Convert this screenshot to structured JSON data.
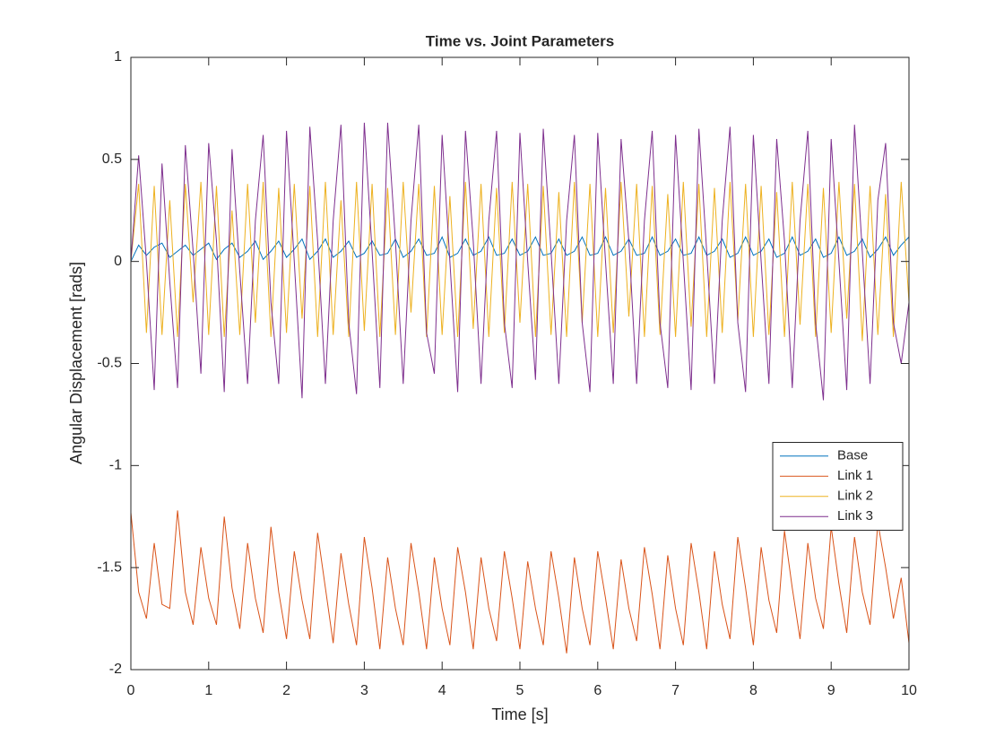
{
  "chart_data": {
    "type": "line",
    "title": "Time vs. Joint Parameters",
    "xlabel": "Time [s]",
    "ylabel": "Angular Displacement [rads]",
    "x": [
      0,
      0.1,
      0.2,
      0.3,
      0.4,
      0.5,
      0.6,
      0.7,
      0.8,
      0.9,
      1,
      1.1,
      1.2,
      1.3,
      1.4,
      1.5,
      1.6,
      1.7,
      1.8,
      1.9,
      2,
      2.1,
      2.2,
      2.3,
      2.4,
      2.5,
      2.6,
      2.7,
      2.8,
      2.9,
      3,
      3.1,
      3.2,
      3.3,
      3.4,
      3.5,
      3.6,
      3.7,
      3.8,
      3.9,
      4,
      4.1,
      4.2,
      4.3,
      4.4,
      4.5,
      4.6,
      4.7,
      4.8,
      4.9,
      5,
      5.1,
      5.2,
      5.3,
      5.4,
      5.5,
      5.6,
      5.7,
      5.8,
      5.9,
      6,
      6.1,
      6.2,
      6.3,
      6.4,
      6.5,
      6.6,
      6.7,
      6.8,
      6.9,
      7,
      7.1,
      7.2,
      7.3,
      7.4,
      7.5,
      7.6,
      7.7,
      7.8,
      7.9,
      8,
      8.1,
      8.2,
      8.3,
      8.4,
      8.5,
      8.6,
      8.7,
      8.8,
      8.9,
      9,
      9.1,
      9.2,
      9.3,
      9.4,
      9.5,
      9.6,
      9.7,
      9.8,
      9.9,
      10
    ],
    "series": [
      {
        "name": "Base",
        "color": "#0072BD",
        "values": [
          0,
          0.08,
          0.03,
          0.07,
          0.09,
          0.02,
          0.05,
          0.08,
          0.03,
          0.06,
          0.09,
          0.01,
          0.06,
          0.09,
          0.02,
          0.05,
          0.1,
          0.01,
          0.05,
          0.1,
          0.02,
          0.06,
          0.11,
          0.01,
          0.05,
          0.11,
          0.02,
          0.05,
          0.1,
          0.02,
          0.04,
          0.1,
          0.03,
          0.04,
          0.11,
          0.02,
          0.05,
          0.11,
          0.03,
          0.04,
          0.12,
          0.02,
          0.04,
          0.11,
          0.03,
          0.05,
          0.12,
          0.03,
          0.04,
          0.11,
          0.03,
          0.05,
          0.12,
          0.03,
          0.04,
          0.11,
          0.03,
          0.05,
          0.12,
          0.03,
          0.04,
          0.12,
          0.03,
          0.05,
          0.11,
          0.03,
          0.04,
          0.12,
          0.03,
          0.05,
          0.11,
          0.03,
          0.04,
          0.12,
          0.03,
          0.05,
          0.11,
          0.02,
          0.04,
          0.12,
          0.03,
          0.05,
          0.11,
          0.02,
          0.04,
          0.12,
          0.03,
          0.05,
          0.11,
          0.02,
          0.04,
          0.12,
          0.03,
          0.05,
          0.11,
          0.02,
          0.06,
          0.12,
          0.03,
          0.08,
          0.12
        ]
      },
      {
        "name": "Link 1",
        "color": "#D95319",
        "values": [
          -1.23,
          -1.62,
          -1.75,
          -1.38,
          -1.68,
          -1.7,
          -1.22,
          -1.62,
          -1.78,
          -1.4,
          -1.65,
          -1.78,
          -1.25,
          -1.6,
          -1.8,
          -1.38,
          -1.65,
          -1.82,
          -1.3,
          -1.62,
          -1.85,
          -1.42,
          -1.66,
          -1.85,
          -1.33,
          -1.6,
          -1.87,
          -1.43,
          -1.68,
          -1.88,
          -1.35,
          -1.6,
          -1.9,
          -1.45,
          -1.7,
          -1.88,
          -1.38,
          -1.62,
          -1.9,
          -1.45,
          -1.7,
          -1.88,
          -1.4,
          -1.62,
          -1.9,
          -1.45,
          -1.7,
          -1.86,
          -1.42,
          -1.65,
          -1.9,
          -1.47,
          -1.7,
          -1.88,
          -1.42,
          -1.65,
          -1.92,
          -1.45,
          -1.7,
          -1.88,
          -1.42,
          -1.65,
          -1.9,
          -1.46,
          -1.7,
          -1.86,
          -1.4,
          -1.63,
          -1.9,
          -1.44,
          -1.7,
          -1.88,
          -1.38,
          -1.62,
          -1.9,
          -1.42,
          -1.68,
          -1.85,
          -1.35,
          -1.6,
          -1.88,
          -1.4,
          -1.66,
          -1.82,
          -1.32,
          -1.6,
          -1.85,
          -1.38,
          -1.65,
          -1.8,
          -1.3,
          -1.58,
          -1.82,
          -1.35,
          -1.62,
          -1.78,
          -1.28,
          -1.5,
          -1.75,
          -1.55,
          -1.87
        ]
      },
      {
        "name": "Link 2",
        "color": "#EDB120",
        "values": [
          0,
          0.38,
          -0.35,
          0.37,
          -0.36,
          0.3,
          -0.37,
          0.38,
          -0.2,
          0.39,
          -0.36,
          0.37,
          -0.37,
          0.25,
          -0.36,
          0.38,
          -0.3,
          0.39,
          -0.37,
          0.36,
          -0.35,
          0.38,
          -0.28,
          0.37,
          -0.37,
          0.39,
          -0.36,
          0.3,
          -0.37,
          0.39,
          -0.34,
          0.38,
          -0.37,
          0.36,
          -0.36,
          0.39,
          -0.25,
          0.38,
          -0.37,
          0.37,
          -0.36,
          0.32,
          -0.37,
          0.39,
          -0.33,
          0.38,
          -0.37,
          0.36,
          -0.35,
          0.39,
          -0.3,
          0.38,
          -0.37,
          0.37,
          -0.36,
          0.34,
          -0.37,
          0.39,
          -0.3,
          0.38,
          -0.37,
          0.36,
          -0.35,
          0.39,
          -0.27,
          0.38,
          -0.37,
          0.37,
          -0.36,
          0.33,
          -0.37,
          0.39,
          -0.32,
          0.38,
          -0.37,
          0.36,
          -0.35,
          0.39,
          -0.29,
          0.38,
          -0.37,
          0.37,
          -0.36,
          0.34,
          -0.37,
          0.39,
          -0.31,
          0.38,
          -0.37,
          0.36,
          -0.35,
          0.39,
          -0.28,
          0.38,
          -0.39,
          0.37,
          -0.36,
          0.33,
          -0.37,
          0.39,
          -0.2
        ]
      },
      {
        "name": "Link 3",
        "color": "#7E2F8E",
        "values": [
          0,
          0.52,
          0,
          -0.63,
          0.48,
          -0.1,
          -0.62,
          0.57,
          0.05,
          -0.55,
          0.58,
          0.1,
          -0.64,
          0.55,
          -0.05,
          -0.6,
          0.2,
          0.62,
          -0.2,
          -0.6,
          0.64,
          0,
          -0.67,
          0.66,
          0.1,
          -0.6,
          0.2,
          0.67,
          -0.3,
          -0.65,
          0.68,
          0.05,
          -0.62,
          0.68,
          0.1,
          -0.6,
          0.2,
          0.67,
          -0.35,
          -0.55,
          0.62,
          0,
          -0.64,
          0.64,
          0.1,
          -0.6,
          0.2,
          0.64,
          -0.3,
          -0.62,
          0.63,
          0,
          -0.58,
          0.65,
          0.05,
          -0.6,
          0.2,
          0.62,
          -0.3,
          -0.64,
          0.63,
          0,
          -0.6,
          0.6,
          0.1,
          -0.6,
          0.2,
          0.64,
          -0.3,
          -0.62,
          0.62,
          0,
          -0.63,
          0.65,
          0.05,
          -0.6,
          0.2,
          0.66,
          -0.3,
          -0.64,
          0.62,
          0,
          -0.6,
          0.6,
          0.1,
          -0.62,
          0.2,
          0.64,
          -0.3,
          -0.68,
          0.6,
          0,
          -0.63,
          0.67,
          0.05,
          -0.6,
          0.3,
          0.58,
          -0.3,
          -0.5,
          -0.2
        ]
      }
    ],
    "xlim": [
      0,
      10
    ],
    "xticks": [
      0,
      1,
      2,
      3,
      4,
      5,
      6,
      7,
      8,
      9,
      10
    ],
    "ylim": [
      -2,
      1
    ],
    "yticks": [
      -2,
      -1.5,
      -1,
      -0.5,
      0,
      0.5,
      1
    ],
    "legend": "east"
  }
}
